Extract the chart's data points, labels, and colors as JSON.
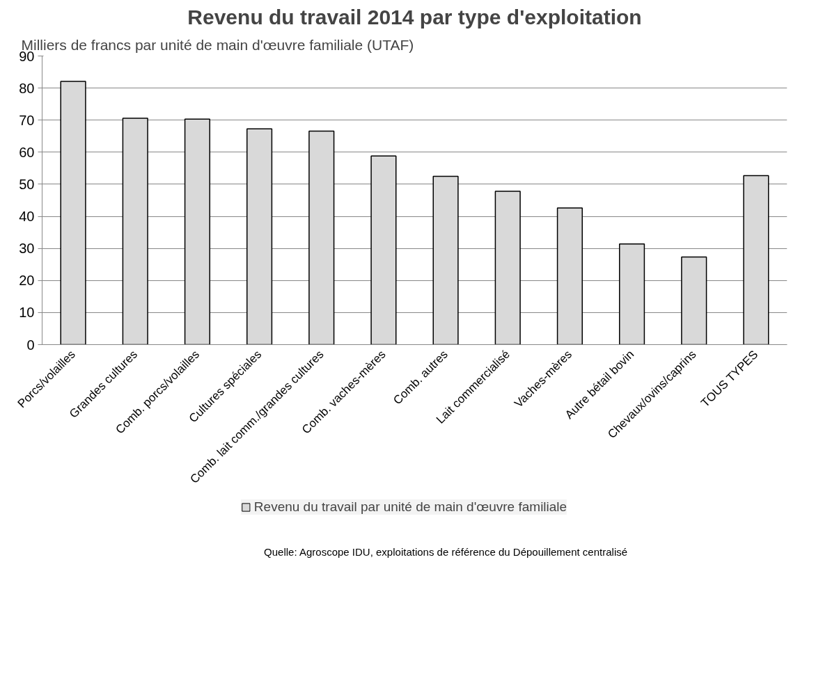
{
  "chart_data": {
    "type": "bar",
    "title": "Revenu du travail 2014 par type d'exploitation",
    "ylabel": "Milliers de francs par unité de main d'œuvre familiale (UTAF)",
    "categories": [
      "Porcs/volailles",
      "Grandes cultures",
      "Comb. porcs/volailles",
      "Cultures spéciales",
      "Comb. lait comm./grandes cultures",
      "Comb. vaches-mères",
      "Comb. autres",
      "Lait commercialisé",
      "Vaches-mères",
      "Autre bétail bovin",
      "Chevaux/ovins/caprins",
      "TOUS TYPES"
    ],
    "series": [
      {
        "name": "Revenu du travail par unité de main d'œuvre familiale",
        "color": "#d9d9d9",
        "values": [
          82.1,
          70.6,
          70.3,
          67.3,
          66.6,
          58.8,
          52.5,
          47.8,
          42.6,
          31.4,
          27.3,
          52.7
        ]
      }
    ],
    "ylim": [
      0,
      90
    ],
    "yticks": [
      0,
      10,
      20,
      30,
      40,
      50,
      60,
      70,
      80,
      90
    ],
    "grid": "y",
    "legend": "bottom",
    "annotations": [
      "Quelle: Agroscope IDU, exploitations de référence du Dépouillement centralisé"
    ]
  }
}
